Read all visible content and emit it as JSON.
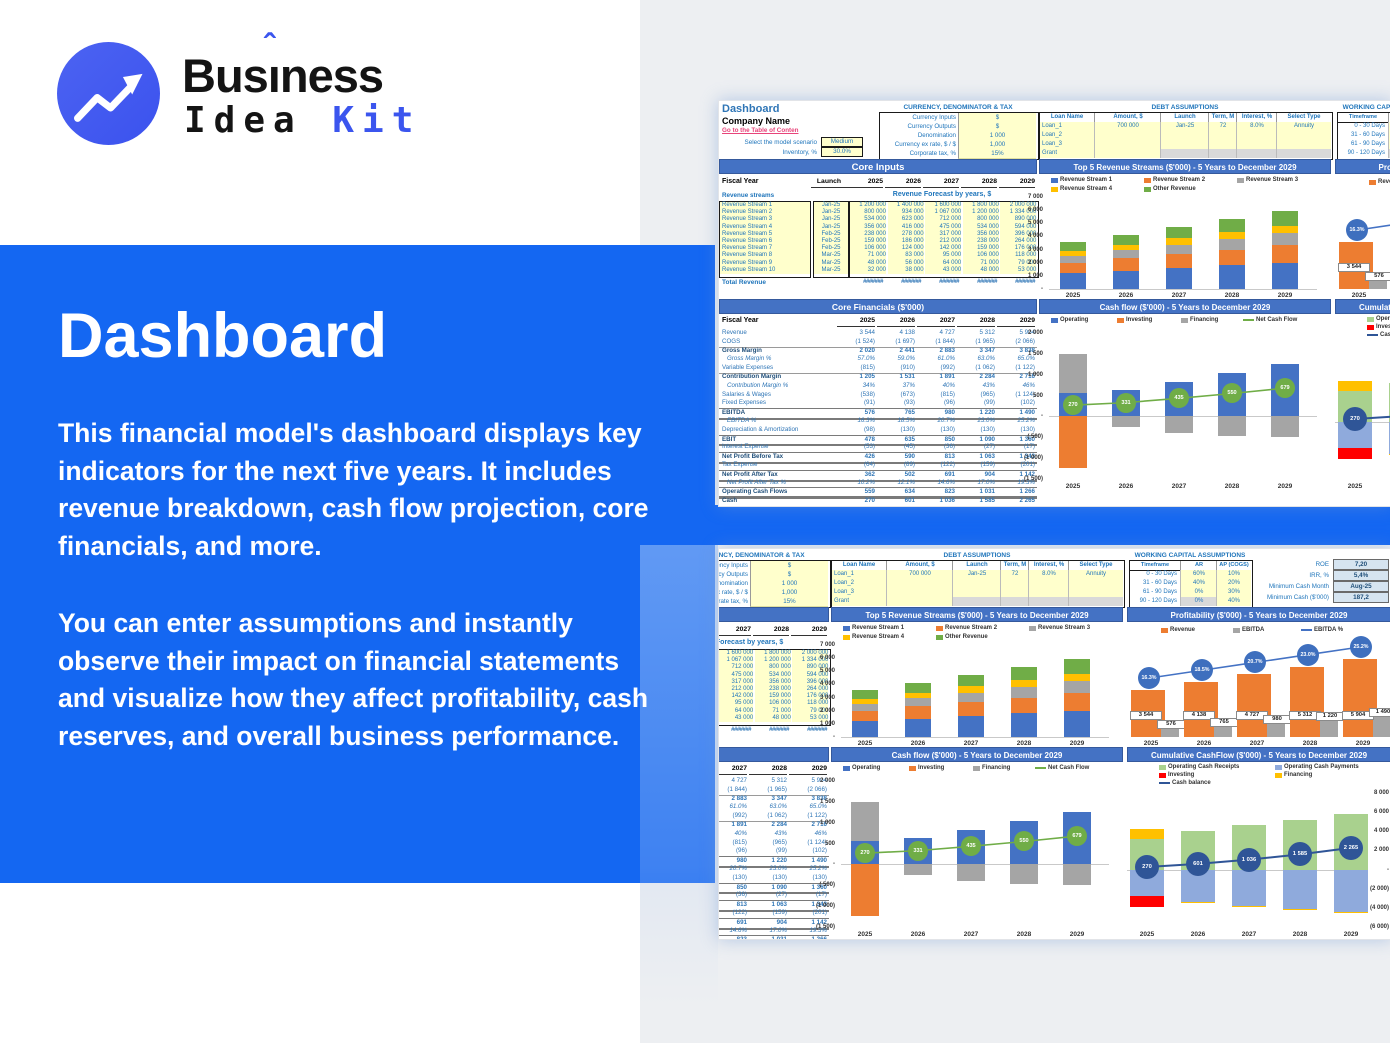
{
  "colors": {
    "accent_blue": "#1467f2",
    "logo_blue": "#3b55ee",
    "excel_banner": "#4472c4",
    "bar_blue": "#4472c4",
    "bar_orange": "#ed7d31",
    "bar_gray": "#a5a5a5",
    "bar_yellow": "#ffc000",
    "bar_green": "#70ad47",
    "bar_lightgreen": "#a9d18e",
    "bar_lightblue": "#8faadc",
    "bar_red": "#ff0000",
    "marker_navy": "#2f5597",
    "input_yellow": "#ffffcc"
  },
  "brand": {
    "bus": "Bus",
    "i": "ı",
    "caret": "ˆ",
    "ness": "ness",
    "idea": "Idea ",
    "kit": "Kit"
  },
  "hero": {
    "title": "Dashboard",
    "paragraph1": "This financial model's dashboard displays key indicators for the next five years. It includes revenue breakdown, cash flow projection, core financials, and more.",
    "paragraph2": "You can enter assumptions and instantly observe their impact on financial statements and visualize how they affect profitability, cash reserves, and overall business performance."
  },
  "sheet": {
    "header": {
      "title": "Dashboard",
      "company": "Company Name",
      "link": "Go to the Table of Conten",
      "scenario_label": "Select the model scenario",
      "scenario_value": "Medium",
      "inventory_label": "Inventory, %",
      "inventory_value": "30.0%"
    },
    "currency": {
      "title": "CURRENCY, DENOMINATOR & TAX",
      "rows": [
        [
          "Currency Inputs",
          "$"
        ],
        [
          "Currency Outputs",
          "$"
        ],
        [
          "Denomination",
          "1 000"
        ],
        [
          "Currency ex rate, $ / $",
          "1,000"
        ],
        [
          "Corporate tax, %",
          "15%"
        ]
      ]
    },
    "debt": {
      "title": "DEBT ASSUMPTIONS",
      "headers": [
        "Loan Name",
        "Amount, $",
        "Launch",
        "Term, M",
        "Interest, %",
        "Select Type"
      ],
      "rows": [
        [
          "Loan_1",
          "700 000",
          "Jan-25",
          "72",
          "8.0%",
          "Annuity"
        ],
        [
          "Loan_2",
          "",
          "",
          "",
          "",
          ""
        ],
        [
          "Loan_3",
          "",
          "",
          "",
          "",
          ""
        ],
        [
          "Grant",
          "",
          "",
          "",
          "",
          ""
        ]
      ]
    },
    "working_capital": {
      "title": "WORKING CAPITAL ASSUMPTIONS",
      "headers": [
        "Timeframe",
        "AR (Revenue)",
        "AP (COGS)"
      ],
      "rows": [
        [
          "0 - 30 Days",
          "60%",
          "10%"
        ],
        [
          "31 - 60 Days",
          "40%",
          "20%"
        ],
        [
          "61 - 90 Days",
          "0%",
          "30%"
        ],
        [
          "90 - 120 Days",
          "0%",
          "40%"
        ]
      ]
    },
    "kpis": [
      [
        "ROE",
        "7,20"
      ],
      [
        "IRR, %",
        "5,4%"
      ],
      [
        "Minimum Cash Month",
        "Aug-25"
      ],
      [
        "Minimum Cash ($'000)",
        "187,2"
      ]
    ],
    "core_inputs": {
      "banner": "Core Inputs",
      "fiscal_label": "Fiscal Year",
      "launch_label": "Launch",
      "years": [
        "2025",
        "2026",
        "2027",
        "2028",
        "2029"
      ],
      "streams_label": "Revenue streams",
      "forecast_title": "Revenue Forecast by years, $",
      "rows": [
        {
          "name": "Revenue Stream 1",
          "launch": "Jan-25",
          "values": [
            "1 200 000",
            "1 400 000",
            "1 600 000",
            "1 800 000",
            "2 000 000"
          ]
        },
        {
          "name": "Revenue Stream 2",
          "launch": "Jan-25",
          "values": [
            "800 000",
            "934 000",
            "1 067 000",
            "1 200 000",
            "1 334 000"
          ]
        },
        {
          "name": "Revenue Stream 3",
          "launch": "Jan-25",
          "values": [
            "534 000",
            "623 000",
            "712 000",
            "800 000",
            "890 000"
          ]
        },
        {
          "name": "Revenue Stream 4",
          "launch": "Jan-25",
          "values": [
            "356 000",
            "416 000",
            "475 000",
            "534 000",
            "594 000"
          ]
        },
        {
          "name": "Revenue Stream 5",
          "launch": "Feb-25",
          "values": [
            "238 000",
            "278 000",
            "317 000",
            "356 000",
            "396 000"
          ]
        },
        {
          "name": "Revenue Stream 6",
          "launch": "Feb-25",
          "values": [
            "159 000",
            "186 000",
            "212 000",
            "238 000",
            "264 000"
          ]
        },
        {
          "name": "Revenue Stream 7",
          "launch": "Feb-25",
          "values": [
            "106 000",
            "124 000",
            "142 000",
            "159 000",
            "176 000"
          ]
        },
        {
          "name": "Revenue Stream 8",
          "launch": "Mar-25",
          "values": [
            "71 000",
            "83 000",
            "95 000",
            "106 000",
            "118 000"
          ]
        },
        {
          "name": "Revenue Stream 9",
          "launch": "Mar-25",
          "values": [
            "48 000",
            "56 000",
            "64 000",
            "71 000",
            "79 000"
          ]
        },
        {
          "name": "Revenue Stream 10",
          "launch": "Mar-25",
          "values": [
            "32 000",
            "38 000",
            "43 000",
            "48 000",
            "53 000"
          ]
        }
      ],
      "total_label": "Total Revenue",
      "total_values": [
        "#######",
        "#######",
        "#######",
        "#######",
        "#######"
      ]
    },
    "core_financials": {
      "banner": "Core Financials ($'000)",
      "fiscal_label": "Fiscal Year",
      "years": [
        "2025",
        "2026",
        "2027",
        "2028",
        "2029"
      ],
      "rows": [
        {
          "label": "Revenue",
          "values": [
            "3 544",
            "4 138",
            "4 727",
            "5 312",
            "5 904"
          ],
          "style": "plain"
        },
        {
          "label": "COGS",
          "values": [
            "(1 524)",
            "(1 697)",
            "(1 844)",
            "(1 965)",
            "(2 066)"
          ],
          "style": "plain u"
        },
        {
          "label": "Gross Margin",
          "values": [
            "2 020",
            "2 441",
            "2 883",
            "3 347",
            "3 838"
          ],
          "style": "bold"
        },
        {
          "label": "Gross Margin %",
          "values": [
            "57.0%",
            "59.0%",
            "61.0%",
            "63.0%",
            "65.0%"
          ],
          "style": "ital"
        },
        {
          "label": "Variable Expenses",
          "values": [
            "(815)",
            "(910)",
            "(992)",
            "(1 062)",
            "(1 122)"
          ],
          "style": "plain u"
        },
        {
          "label": "Contribution Margin",
          "values": [
            "1 205",
            "1 531",
            "1 891",
            "2 284",
            "2 716"
          ],
          "style": "bold"
        },
        {
          "label": "Contribution Margin %",
          "values": [
            "34%",
            "37%",
            "40%",
            "43%",
            "46%"
          ],
          "style": "ital"
        },
        {
          "label": "Salaries & Wages",
          "values": [
            "(538)",
            "(673)",
            "(815)",
            "(965)",
            "(1 124)"
          ],
          "style": "plain"
        },
        {
          "label": "Fixed Expenses",
          "values": [
            "(91)",
            "(93)",
            "(96)",
            "(99)",
            "(102)"
          ],
          "style": "plain u"
        },
        {
          "label": "EBITDA",
          "values": [
            "576",
            "765",
            "980",
            "1 220",
            "1 490"
          ],
          "style": "bold box"
        },
        {
          "label": "EBITDA %",
          "values": [
            "16.3%",
            "18.5%",
            "20.7%",
            "23.0%",
            "25.2%"
          ],
          "style": "ital"
        },
        {
          "label": "Depreciation & Amortization",
          "values": [
            "(98)",
            "(130)",
            "(130)",
            "(130)",
            "(130)"
          ],
          "style": "plain u"
        },
        {
          "label": "EBIT",
          "values": [
            "478",
            "635",
            "850",
            "1 090",
            "1 360"
          ],
          "style": "bold box"
        },
        {
          "label": "Interest Expense",
          "values": [
            "(53)",
            "(45)",
            "(36)",
            "(27)",
            "(17)"
          ],
          "style": "plain u"
        },
        {
          "label": "Net Profit Before Tax",
          "values": [
            "426",
            "590",
            "813",
            "1 063",
            "1 343"
          ],
          "style": "bold box"
        },
        {
          "label": "Tax Expense",
          "values": [
            "(64)",
            "(89)",
            "(122)",
            "(159)",
            "(201)"
          ],
          "style": "plain u"
        },
        {
          "label": "Net Profit After Tax",
          "values": [
            "362",
            "502",
            "691",
            "904",
            "1 142"
          ],
          "style": "bold box"
        },
        {
          "label": "Net Profit After Tax %",
          "values": [
            "10.2%",
            "12.1%",
            "14.6%",
            "17.0%",
            "19.3%"
          ],
          "style": "ital"
        },
        {
          "label": "Operating Cash Flows",
          "values": [
            "559",
            "634",
            "823",
            "1 031",
            "1 266"
          ],
          "style": "bold box"
        },
        {
          "label": "Cash",
          "values": [
            "270",
            "601",
            "1 036",
            "1 585",
            "2 265"
          ],
          "style": "bold box"
        }
      ]
    }
  },
  "chart_data": [
    {
      "type": "bar",
      "subtype": "stacked",
      "title": "Top 5 Revenue Streams ($'000) - 5 Years to December 2029",
      "categories": [
        "2025",
        "2026",
        "2027",
        "2028",
        "2029"
      ],
      "ylim": [
        0,
        7000
      ],
      "yticks": [
        "7 000",
        "6 000",
        "5 000",
        "4 000",
        "3 000",
        "2 000",
        "1 000",
        "-"
      ],
      "series": [
        {
          "name": "Revenue Stream 1",
          "color": "#4472c4",
          "values": [
            1200,
            1400,
            1600,
            1800,
            2000
          ]
        },
        {
          "name": "Revenue Stream 2",
          "color": "#ed7d31",
          "values": [
            800,
            934,
            1067,
            1200,
            1334
          ]
        },
        {
          "name": "Revenue Stream 3",
          "color": "#a5a5a5",
          "values": [
            534,
            623,
            712,
            800,
            890
          ]
        },
        {
          "name": "Revenue Stream 4",
          "color": "#ffc000",
          "values": [
            356,
            416,
            475,
            534,
            594
          ]
        },
        {
          "name": "Other Revenue",
          "color": "#70ad47",
          "values": [
            654,
            765,
            873,
            978,
            1086
          ]
        }
      ]
    },
    {
      "type": "bar",
      "subtype": "bar+line",
      "title": "Profitability ($'000) - 5 Years to December 2029",
      "categories": [
        "2025",
        "2026",
        "2027",
        "2028",
        "2029"
      ],
      "ylim": [
        0,
        6500
      ],
      "series": [
        {
          "name": "Revenue",
          "color": "#ed7d31",
          "values": [
            3544,
            4138,
            4727,
            5312,
            5904
          ],
          "labels": [
            "3 544",
            "4 138",
            "4 727",
            "5 312",
            "5 904"
          ]
        },
        {
          "name": "EBITDA",
          "color": "#a5a5a5",
          "values": [
            576,
            765,
            980,
            1220,
            1490
          ],
          "labels": [
            "576",
            "765",
            "980",
            "1 220",
            "1 490"
          ]
        }
      ],
      "line": {
        "name": "EBITDA %",
        "color": "#4472c4",
        "values": [
          16.3,
          18.5,
          20.7,
          23.0,
          25.2
        ],
        "labels": [
          "16.3%",
          "18.5%",
          "20.7%",
          "23.0%",
          "25.2%"
        ]
      }
    },
    {
      "type": "bar",
      "subtype": "pos-neg+line",
      "title": "Cash flow ($'000) - 5 Years to December 2029",
      "categories": [
        "2025",
        "2026",
        "2027",
        "2028",
        "2029"
      ],
      "ylim": [
        -1500,
        2000
      ],
      "yticks": [
        "2 000",
        "1 500",
        "1 000",
        "500",
        "-",
        "( 500)",
        "(1 000)",
        "(1 500)"
      ],
      "series": [
        {
          "name": "Operating",
          "color": "#4472c4",
          "values": [
            559,
            634,
            823,
            1031,
            1266
          ]
        },
        {
          "name": "Investing",
          "color": "#ed7d31",
          "values": [
            -1230,
            0,
            0,
            0,
            0
          ]
        },
        {
          "name": "Financing",
          "color": "#a5a5a5",
          "values": [
            941,
            -260,
            -395,
            -480,
            -490
          ]
        }
      ],
      "line": {
        "name": "Net Cash Flow",
        "color": "#70ad47",
        "values": [
          270,
          331,
          435,
          550,
          679
        ],
        "labels": [
          "270",
          "331",
          "435",
          "550",
          "679"
        ]
      }
    },
    {
      "type": "bar",
      "subtype": "stacked-pos-neg+line",
      "title": "Cumulative CashFlow ($'000) - 5 Years to December 2029",
      "categories": [
        "2025",
        "2026",
        "2027",
        "2028",
        "2029"
      ],
      "ylim": [
        -6000,
        8000
      ],
      "yticks": [
        "8 000",
        "6 000",
        "4 000",
        "2 000",
        "-",
        "(2 000)",
        "(4 000)",
        "(6 000)"
      ],
      "series": [
        {
          "name": "Operating Cash Receipts",
          "color": "#a9d18e",
          "values": [
            3200,
            4000,
            4700,
            5200,
            5800
          ]
        },
        {
          "name": "Operating Cash Payments",
          "color": "#8faadc",
          "values": [
            -2800,
            -3350,
            -3850,
            -4100,
            -4400
          ]
        },
        {
          "name": "Investing",
          "color": "#ff0000",
          "values": [
            -1100,
            0,
            0,
            0,
            0
          ]
        },
        {
          "name": "Financing",
          "color": "#ffc000",
          "values": [
            1000,
            -80,
            -90,
            -90,
            -100
          ]
        }
      ],
      "line": {
        "name": "Cash balance",
        "color": "#2f5597",
        "values": [
          270,
          601,
          1036,
          1585,
          2265
        ],
        "labels": [
          "270",
          "601",
          "1 036",
          "1 585",
          "2 265"
        ]
      }
    }
  ]
}
